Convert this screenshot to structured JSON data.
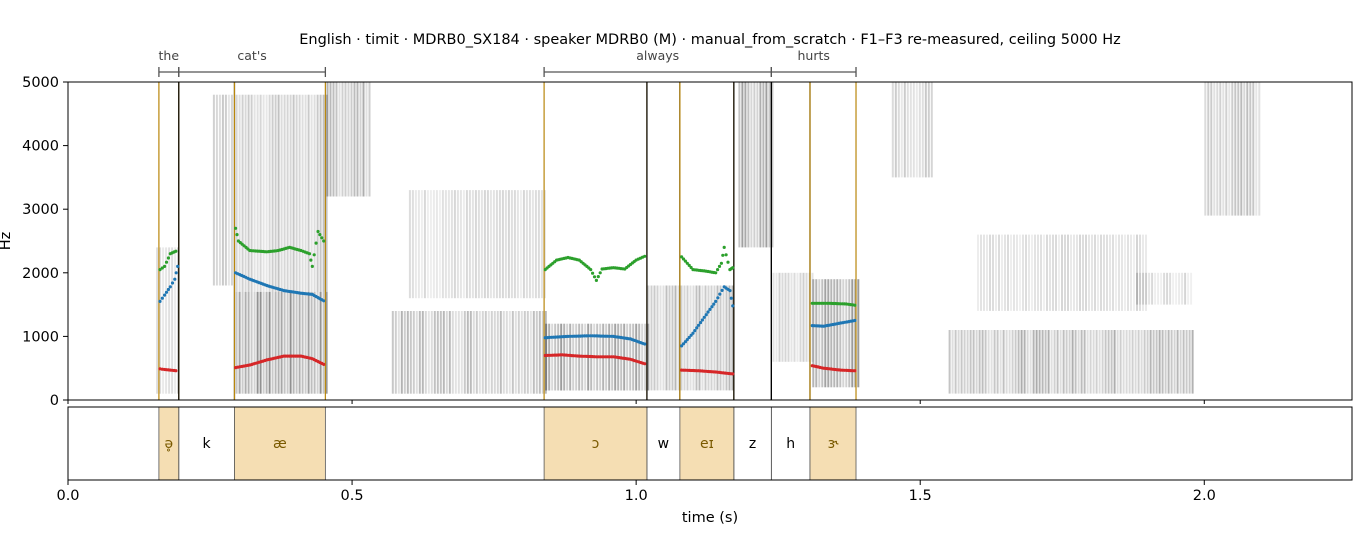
{
  "chart_data": {
    "type": "spectrogram",
    "title": "English · timit · MDRB0_SX184 · speaker MDRB0 (M) · manual_from_scratch · F1–F3 re-measured, ceiling 5000 Hz",
    "xlabel": "time (s)",
    "ylabel": "Hz",
    "xlim": [
      0.0,
      2.26
    ],
    "ylim": [
      0,
      5000
    ],
    "x_ticks": [
      0.0,
      0.5,
      1.0,
      1.5,
      2.0
    ],
    "x_tick_labels": [
      "0.0",
      "0.5",
      "1.0",
      "1.5",
      "2.0"
    ],
    "y_ticks": [
      0,
      1000,
      2000,
      3000,
      4000,
      5000
    ],
    "y_tick_labels": [
      "0",
      "1000",
      "2000",
      "3000",
      "4000",
      "5000"
    ],
    "colors": {
      "F1": "#d62728",
      "F2": "#1f77b4",
      "F3": "#2ca02c",
      "vowel_fill": "#f5deb3",
      "vowel_boundary": "#b8860b",
      "word_bracket": "#555555"
    },
    "words": [
      {
        "label": "the",
        "start": 0.16,
        "end": 0.195
      },
      {
        "label": "cat's",
        "start": 0.195,
        "end": 0.453
      },
      {
        "label": "always",
        "start": 0.838,
        "end": 1.238
      },
      {
        "label": "hurts",
        "start": 1.238,
        "end": 1.387
      }
    ],
    "phones": [
      {
        "label": "ə̥",
        "start": 0.16,
        "end": 0.195,
        "vowel": true
      },
      {
        "label": "k",
        "start": 0.195,
        "end": 0.293,
        "vowel": false
      },
      {
        "label": "æ",
        "start": 0.293,
        "end": 0.453,
        "vowel": true
      },
      {
        "label": "ɔ",
        "start": 0.838,
        "end": 1.019,
        "vowel": true
      },
      {
        "label": "w",
        "start": 1.019,
        "end": 1.077,
        "vowel": false
      },
      {
        "label": "eɪ",
        "start": 1.077,
        "end": 1.172,
        "vowel": true
      },
      {
        "label": "z",
        "start": 1.172,
        "end": 1.238,
        "vowel": false
      },
      {
        "label": "h",
        "start": 1.238,
        "end": 1.306,
        "vowel": false
      },
      {
        "label": "ɝ",
        "start": 1.306,
        "end": 1.387,
        "vowel": true
      }
    ],
    "formants": [
      {
        "segment": "ə̥",
        "F1": [
          [
            0.162,
            490
          ],
          [
            0.17,
            480
          ],
          [
            0.18,
            470
          ],
          [
            0.19,
            460
          ]
        ],
        "F2": [
          [
            0.162,
            1550
          ],
          [
            0.17,
            1650
          ],
          [
            0.18,
            1780
          ],
          [
            0.188,
            1900
          ],
          [
            0.193,
            2100
          ]
        ],
        "F3": [
          [
            0.162,
            2050
          ],
          [
            0.17,
            2100
          ],
          [
            0.18,
            2300
          ],
          [
            0.19,
            2340
          ]
        ]
      },
      {
        "segment": "æ",
        "F1": [
          [
            0.295,
            510
          ],
          [
            0.32,
            550
          ],
          [
            0.35,
            630
          ],
          [
            0.38,
            690
          ],
          [
            0.41,
            690
          ],
          [
            0.43,
            650
          ],
          [
            0.45,
            560
          ]
        ],
        "F2": [
          [
            0.295,
            2000
          ],
          [
            0.32,
            1900
          ],
          [
            0.35,
            1800
          ],
          [
            0.38,
            1720
          ],
          [
            0.41,
            1680
          ],
          [
            0.43,
            1660
          ],
          [
            0.45,
            1560
          ]
        ],
        "F3": [
          [
            0.295,
            2700
          ],
          [
            0.3,
            2500
          ],
          [
            0.32,
            2350
          ],
          [
            0.35,
            2330
          ],
          [
            0.37,
            2350
          ],
          [
            0.39,
            2400
          ],
          [
            0.41,
            2350
          ],
          [
            0.425,
            2300
          ],
          [
            0.43,
            2100
          ],
          [
            0.44,
            2650
          ],
          [
            0.45,
            2500
          ]
        ]
      },
      {
        "segment": "ɔ",
        "F1": [
          [
            0.84,
            700
          ],
          [
            0.87,
            710
          ],
          [
            0.9,
            690
          ],
          [
            0.93,
            680
          ],
          [
            0.96,
            680
          ],
          [
            0.99,
            640
          ],
          [
            1.015,
            570
          ]
        ],
        "F2": [
          [
            0.84,
            980
          ],
          [
            0.88,
            1000
          ],
          [
            0.92,
            1010
          ],
          [
            0.96,
            1000
          ],
          [
            0.99,
            960
          ],
          [
            1.015,
            880
          ]
        ],
        "F3": [
          [
            0.84,
            2050
          ],
          [
            0.86,
            2200
          ],
          [
            0.88,
            2240
          ],
          [
            0.9,
            2200
          ],
          [
            0.92,
            2050
          ],
          [
            0.93,
            1880
          ],
          [
            0.94,
            2060
          ],
          [
            0.96,
            2080
          ],
          [
            0.98,
            2060
          ],
          [
            1.0,
            2200
          ],
          [
            1.015,
            2260
          ]
        ]
      },
      {
        "segment": "eɪ",
        "F1": [
          [
            1.08,
            470
          ],
          [
            1.11,
            460
          ],
          [
            1.14,
            440
          ],
          [
            1.17,
            410
          ]
        ],
        "F2": [
          [
            1.08,
            850
          ],
          [
            1.1,
            1050
          ],
          [
            1.12,
            1300
          ],
          [
            1.14,
            1550
          ],
          [
            1.155,
            1780
          ],
          [
            1.165,
            1720
          ],
          [
            1.17,
            1480
          ]
        ],
        "F3": [
          [
            1.08,
            2250
          ],
          [
            1.1,
            2050
          ],
          [
            1.12,
            2030
          ],
          [
            1.14,
            2000
          ],
          [
            1.15,
            2150
          ],
          [
            1.155,
            2400
          ],
          [
            1.165,
            2050
          ],
          [
            1.17,
            2080
          ]
        ]
      },
      {
        "segment": "ɝ",
        "F1": [
          [
            1.31,
            540
          ],
          [
            1.33,
            500
          ],
          [
            1.36,
            470
          ],
          [
            1.385,
            460
          ]
        ],
        "F2": [
          [
            1.31,
            1170
          ],
          [
            1.33,
            1160
          ],
          [
            1.36,
            1210
          ],
          [
            1.385,
            1250
          ]
        ],
        "F3": [
          [
            1.31,
            1520
          ],
          [
            1.34,
            1520
          ],
          [
            1.37,
            1510
          ],
          [
            1.385,
            1490
          ]
        ]
      }
    ],
    "energy_regions": [
      {
        "t0": 0.155,
        "t1": 0.195,
        "f0": 100,
        "f1": 2400,
        "level": 0.35
      },
      {
        "t0": 0.255,
        "t1": 0.29,
        "f0": 1800,
        "f1": 4800,
        "level": 0.45
      },
      {
        "t0": 0.295,
        "t1": 0.455,
        "f0": 100,
        "f1": 1700,
        "level": 0.8
      },
      {
        "t0": 0.295,
        "t1": 0.455,
        "f0": 1700,
        "f1": 4800,
        "level": 0.45
      },
      {
        "t0": 0.455,
        "t1": 0.53,
        "f0": 3200,
        "f1": 5000,
        "level": 0.6
      },
      {
        "t0": 0.57,
        "t1": 0.84,
        "f0": 100,
        "f1": 1400,
        "level": 0.55
      },
      {
        "t0": 0.6,
        "t1": 0.84,
        "f0": 1600,
        "f1": 3300,
        "level": 0.3
      },
      {
        "t0": 0.84,
        "t1": 1.02,
        "f0": 150,
        "f1": 1200,
        "level": 0.7
      },
      {
        "t0": 1.02,
        "t1": 1.17,
        "f0": 150,
        "f1": 1800,
        "level": 0.55
      },
      {
        "t0": 1.18,
        "t1": 1.24,
        "f0": 2400,
        "f1": 5000,
        "level": 0.7
      },
      {
        "t0": 1.24,
        "t1": 1.31,
        "f0": 600,
        "f1": 2000,
        "level": 0.35
      },
      {
        "t0": 1.31,
        "t1": 1.39,
        "f0": 200,
        "f1": 1900,
        "level": 0.75
      },
      {
        "t0": 1.45,
        "t1": 1.52,
        "f0": 3500,
        "f1": 5000,
        "level": 0.4
      },
      {
        "t0": 1.55,
        "t1": 1.98,
        "f0": 100,
        "f1": 1100,
        "level": 0.6
      },
      {
        "t0": 1.6,
        "t1": 1.9,
        "f0": 1400,
        "f1": 2600,
        "level": 0.3
      },
      {
        "t0": 1.88,
        "t1": 1.98,
        "f0": 1500,
        "f1": 2000,
        "level": 0.3
      },
      {
        "t0": 2.0,
        "t1": 2.1,
        "f0": 2900,
        "f1": 5000,
        "level": 0.5
      }
    ]
  }
}
